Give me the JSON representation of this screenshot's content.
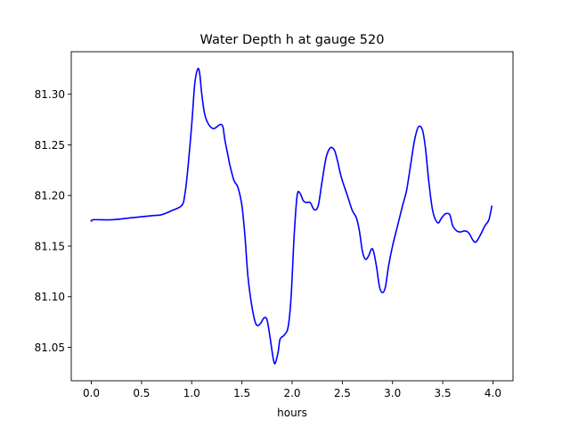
{
  "chart_data": {
    "type": "line",
    "title": "Water Depth h at gauge 520",
    "xlabel": "hours",
    "ylabel": "",
    "xlim": [
      -0.2,
      4.2
    ],
    "ylim": [
      81.017,
      81.342
    ],
    "xticks": [
      0.0,
      0.5,
      1.0,
      1.5,
      2.0,
      2.5,
      3.0,
      3.5,
      4.0
    ],
    "xtick_labels": [
      "0.0",
      "0.5",
      "1.0",
      "1.5",
      "2.0",
      "2.5",
      "3.0",
      "3.5",
      "4.0"
    ],
    "yticks": [
      81.05,
      81.1,
      81.15,
      81.2,
      81.25,
      81.3
    ],
    "ytick_labels": [
      "81.05",
      "81.10",
      "81.15",
      "81.20",
      "81.25",
      "81.30"
    ],
    "grid": false,
    "series": [
      {
        "color": "#0000ff",
        "x": [
          0.0,
          0.02,
          0.2,
          0.4,
          0.6,
          0.7,
          0.8,
          0.9,
          0.93,
          0.96,
          1.0,
          1.03,
          1.06,
          1.08,
          1.1,
          1.13,
          1.17,
          1.22,
          1.28,
          1.31,
          1.33,
          1.36,
          1.38,
          1.42,
          1.46,
          1.5,
          1.53,
          1.56,
          1.6,
          1.64,
          1.68,
          1.72,
          1.75,
          1.78,
          1.81,
          1.83,
          1.86,
          1.88,
          1.92,
          1.96,
          1.99,
          2.02,
          2.05,
          2.08,
          2.11,
          2.14,
          2.18,
          2.22,
          2.26,
          2.3,
          2.34,
          2.38,
          2.42,
          2.45,
          2.49,
          2.55,
          2.6,
          2.64,
          2.67,
          2.7,
          2.73,
          2.76,
          2.79,
          2.81,
          2.84,
          2.87,
          2.9,
          2.93,
          2.96,
          3.0,
          3.05,
          3.1,
          3.14,
          3.18,
          3.22,
          3.26,
          3.3,
          3.33,
          3.36,
          3.4,
          3.45,
          3.49,
          3.53,
          3.57,
          3.6,
          3.64,
          3.68,
          3.72,
          3.76,
          3.8,
          3.83,
          3.87,
          3.92,
          3.96,
          3.99
        ],
        "y": [
          81.174,
          81.176,
          81.176,
          81.178,
          81.18,
          81.181,
          81.185,
          81.19,
          81.2,
          81.225,
          81.27,
          81.31,
          81.325,
          81.32,
          81.3,
          81.28,
          81.27,
          81.266,
          81.27,
          81.268,
          81.255,
          81.24,
          81.23,
          81.215,
          81.208,
          81.19,
          81.16,
          81.12,
          81.09,
          81.073,
          81.073,
          81.079,
          81.077,
          81.06,
          81.04,
          81.034,
          81.045,
          81.058,
          81.062,
          81.07,
          81.1,
          81.16,
          81.2,
          81.202,
          81.195,
          81.193,
          81.193,
          81.186,
          81.19,
          81.215,
          81.238,
          81.247,
          81.245,
          81.235,
          81.218,
          81.2,
          81.185,
          81.178,
          81.165,
          81.145,
          81.137,
          81.14,
          81.147,
          81.145,
          81.13,
          81.11,
          81.104,
          81.11,
          81.13,
          81.15,
          81.17,
          81.19,
          81.205,
          81.23,
          81.255,
          81.268,
          81.264,
          81.245,
          81.215,
          81.185,
          81.173,
          81.178,
          81.182,
          81.181,
          81.17,
          81.165,
          81.164,
          81.165,
          81.163,
          81.156,
          81.154,
          81.16,
          81.17,
          81.176,
          81.19
        ]
      }
    ]
  }
}
